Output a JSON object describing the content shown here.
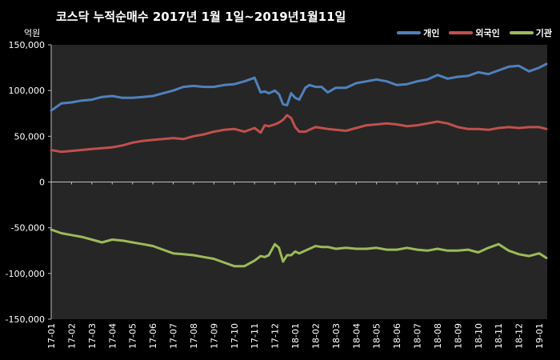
{
  "chart_data": {
    "type": "line",
    "title": "코스닥  누적순매수 2017년 1월 1일~2019년1월11일",
    "unit_label": "억원",
    "x_tick_labels": [
      "17-01",
      "17-02",
      "17-03",
      "17-04",
      "17-05",
      "17-06",
      "17-07",
      "17-08",
      "17-09",
      "17-10",
      "17-11",
      "17-12",
      "18-01",
      "18-02",
      "18-03",
      "18-04",
      "18-05",
      "18-06",
      "18-07",
      "18-08",
      "18-09",
      "18-10",
      "18-11",
      "18-12",
      "19-01"
    ],
    "y_tick_labels": [
      "150,000",
      "100,000",
      "50,000",
      "0",
      "-50,000",
      "-100,000",
      "-150,000"
    ],
    "ylim": [
      -150000,
      150000
    ],
    "y_ticks": [
      150000,
      100000,
      50000,
      0,
      -50000,
      -100000,
      -150000
    ],
    "legend_position": "top-right",
    "grid": "none",
    "x_months": [
      0,
      0.5,
      1,
      1.5,
      2,
      2.5,
      3,
      3.5,
      4,
      4.5,
      5,
      5.5,
      6,
      6.5,
      7,
      7.5,
      8,
      8.5,
      9,
      9.5,
      10,
      10.3,
      10.5,
      10.7,
      11,
      11.2,
      11.4,
      11.6,
      11.8,
      12,
      12.2,
      12.5,
      12.7,
      13,
      13.3,
      13.6,
      14,
      14.5,
      15,
      15.5,
      16,
      16.5,
      17,
      17.5,
      18,
      18.5,
      19,
      19.5,
      20,
      20.5,
      21,
      21.5,
      22,
      22.5,
      23,
      23.5,
      24,
      24.35
    ],
    "series": [
      {
        "name": "개인",
        "color": "#4F81BD",
        "values": [
          78000,
          86000,
          87000,
          89000,
          90000,
          93000,
          94000,
          92000,
          92000,
          93000,
          94000,
          97000,
          100000,
          104000,
          105000,
          104000,
          104000,
          106000,
          107000,
          110000,
          114000,
          98000,
          99000,
          97000,
          100000,
          96000,
          85000,
          84000,
          97000,
          92000,
          90000,
          103000,
          106000,
          104000,
          104000,
          98000,
          103000,
          103000,
          108000,
          110000,
          112000,
          110000,
          106000,
          107000,
          110000,
          112000,
          117000,
          113000,
          115000,
          116000,
          120000,
          118000,
          122000,
          126000,
          127000,
          121000,
          125000,
          129000
        ]
      },
      {
        "name": "외국인",
        "color": "#C0504D",
        "values": [
          35000,
          33000,
          34000,
          35000,
          36000,
          37000,
          38000,
          40000,
          43000,
          45000,
          46000,
          47000,
          48000,
          47000,
          50000,
          52000,
          55000,
          57000,
          58000,
          55000,
          59000,
          54000,
          62000,
          61000,
          63000,
          65000,
          68000,
          73000,
          70000,
          60000,
          55000,
          55000,
          57000,
          60000,
          59000,
          58000,
          57000,
          56000,
          59000,
          62000,
          63000,
          64000,
          63000,
          61000,
          62000,
          64000,
          66000,
          64000,
          60000,
          58000,
          58000,
          57000,
          59000,
          60000,
          59000,
          60000,
          60000,
          58000
        ]
      },
      {
        "name": "기관",
        "color": "#9BBB59",
        "values": [
          -52000,
          -56000,
          -58000,
          -60000,
          -63000,
          -66000,
          -63000,
          -64000,
          -66000,
          -68000,
          -70000,
          -74000,
          -78000,
          -79000,
          -80000,
          -82000,
          -84000,
          -88000,
          -92000,
          -92000,
          -86000,
          -81000,
          -82000,
          -80000,
          -68000,
          -72000,
          -87000,
          -80000,
          -80000,
          -76000,
          -78000,
          -75000,
          -73000,
          -70000,
          -71000,
          -71000,
          -73000,
          -72000,
          -73000,
          -73000,
          -72000,
          -74000,
          -74000,
          -72000,
          -74000,
          -75000,
          -73000,
          -75000,
          -75000,
          -74000,
          -77000,
          -72000,
          -68000,
          -75000,
          -79000,
          -81000,
          -78000,
          -83000
        ]
      }
    ]
  }
}
